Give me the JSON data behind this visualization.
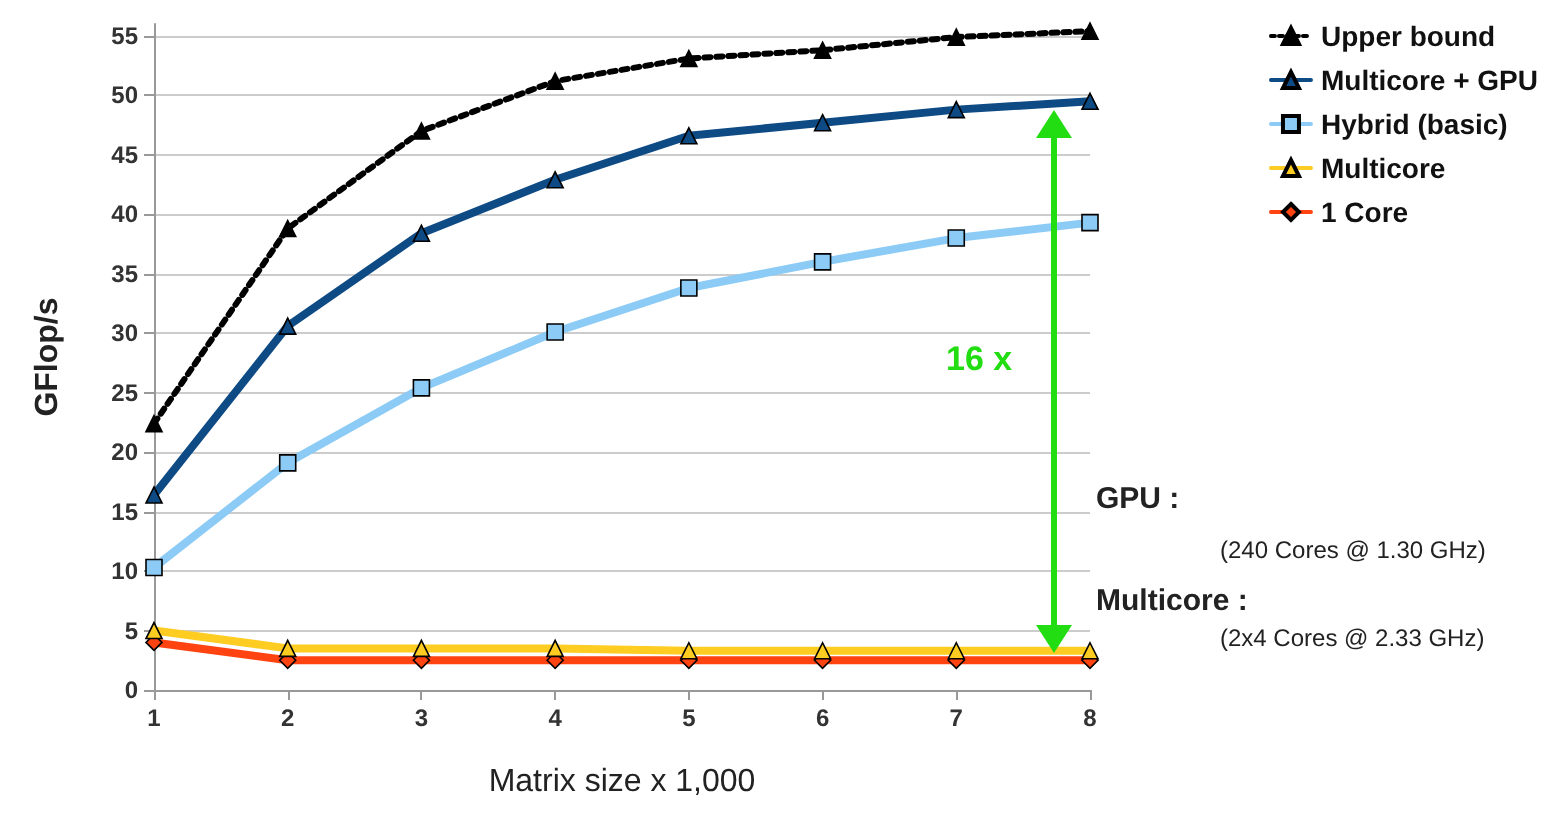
{
  "chart_data": {
    "type": "line",
    "xlabel": "Matrix size x 1,000",
    "ylabel": "GFlop/s",
    "x": [
      1,
      2,
      3,
      4,
      5,
      6,
      7,
      8
    ],
    "xlim": [
      1,
      8
    ],
    "xticks": [
      1,
      2,
      3,
      4,
      5,
      6,
      7,
      8
    ],
    "ylim": [
      0,
      56
    ],
    "yticks": [
      0,
      5,
      10,
      15,
      20,
      25,
      30,
      35,
      40,
      45,
      50,
      55
    ],
    "grid": "y",
    "legend": "right",
    "series": [
      {
        "name": "Upper bound",
        "color": "#000000",
        "marker": "triangle",
        "line_style": "dotted",
        "values": [
          22.4,
          38.8,
          47.0,
          51.2,
          53.1,
          53.8,
          54.9,
          55.4
        ]
      },
      {
        "name": "Multicore + GPU",
        "color": "#0e4a84",
        "marker": "triangle",
        "line_style": "solid",
        "values": [
          16.4,
          30.6,
          38.4,
          42.9,
          46.6,
          47.7,
          48.8,
          49.5
        ]
      },
      {
        "name": "Hybrid (basic)",
        "color": "#8ccbf5",
        "marker": "square",
        "line_style": "solid",
        "values": [
          10.3,
          19.1,
          25.4,
          30.1,
          33.8,
          36.0,
          38.0,
          39.3
        ]
      },
      {
        "name": "Multicore",
        "color": "#ffcc22",
        "marker": "triangle",
        "line_style": "solid",
        "values": [
          5.0,
          3.5,
          3.5,
          3.5,
          3.3,
          3.3,
          3.3,
          3.3
        ]
      },
      {
        "name": "1 Core",
        "color": "#ff4411",
        "marker": "diamond",
        "line_style": "solid",
        "values": [
          4.0,
          2.5,
          2.5,
          2.5,
          2.5,
          2.5,
          2.5,
          2.5
        ]
      }
    ],
    "annotations": [
      "16 x",
      "GPU :",
      "(240 Cores @ 1.30 GHz)",
      "Multicore :",
      "(2x4 Cores @ 2.33 GHz)"
    ]
  }
}
